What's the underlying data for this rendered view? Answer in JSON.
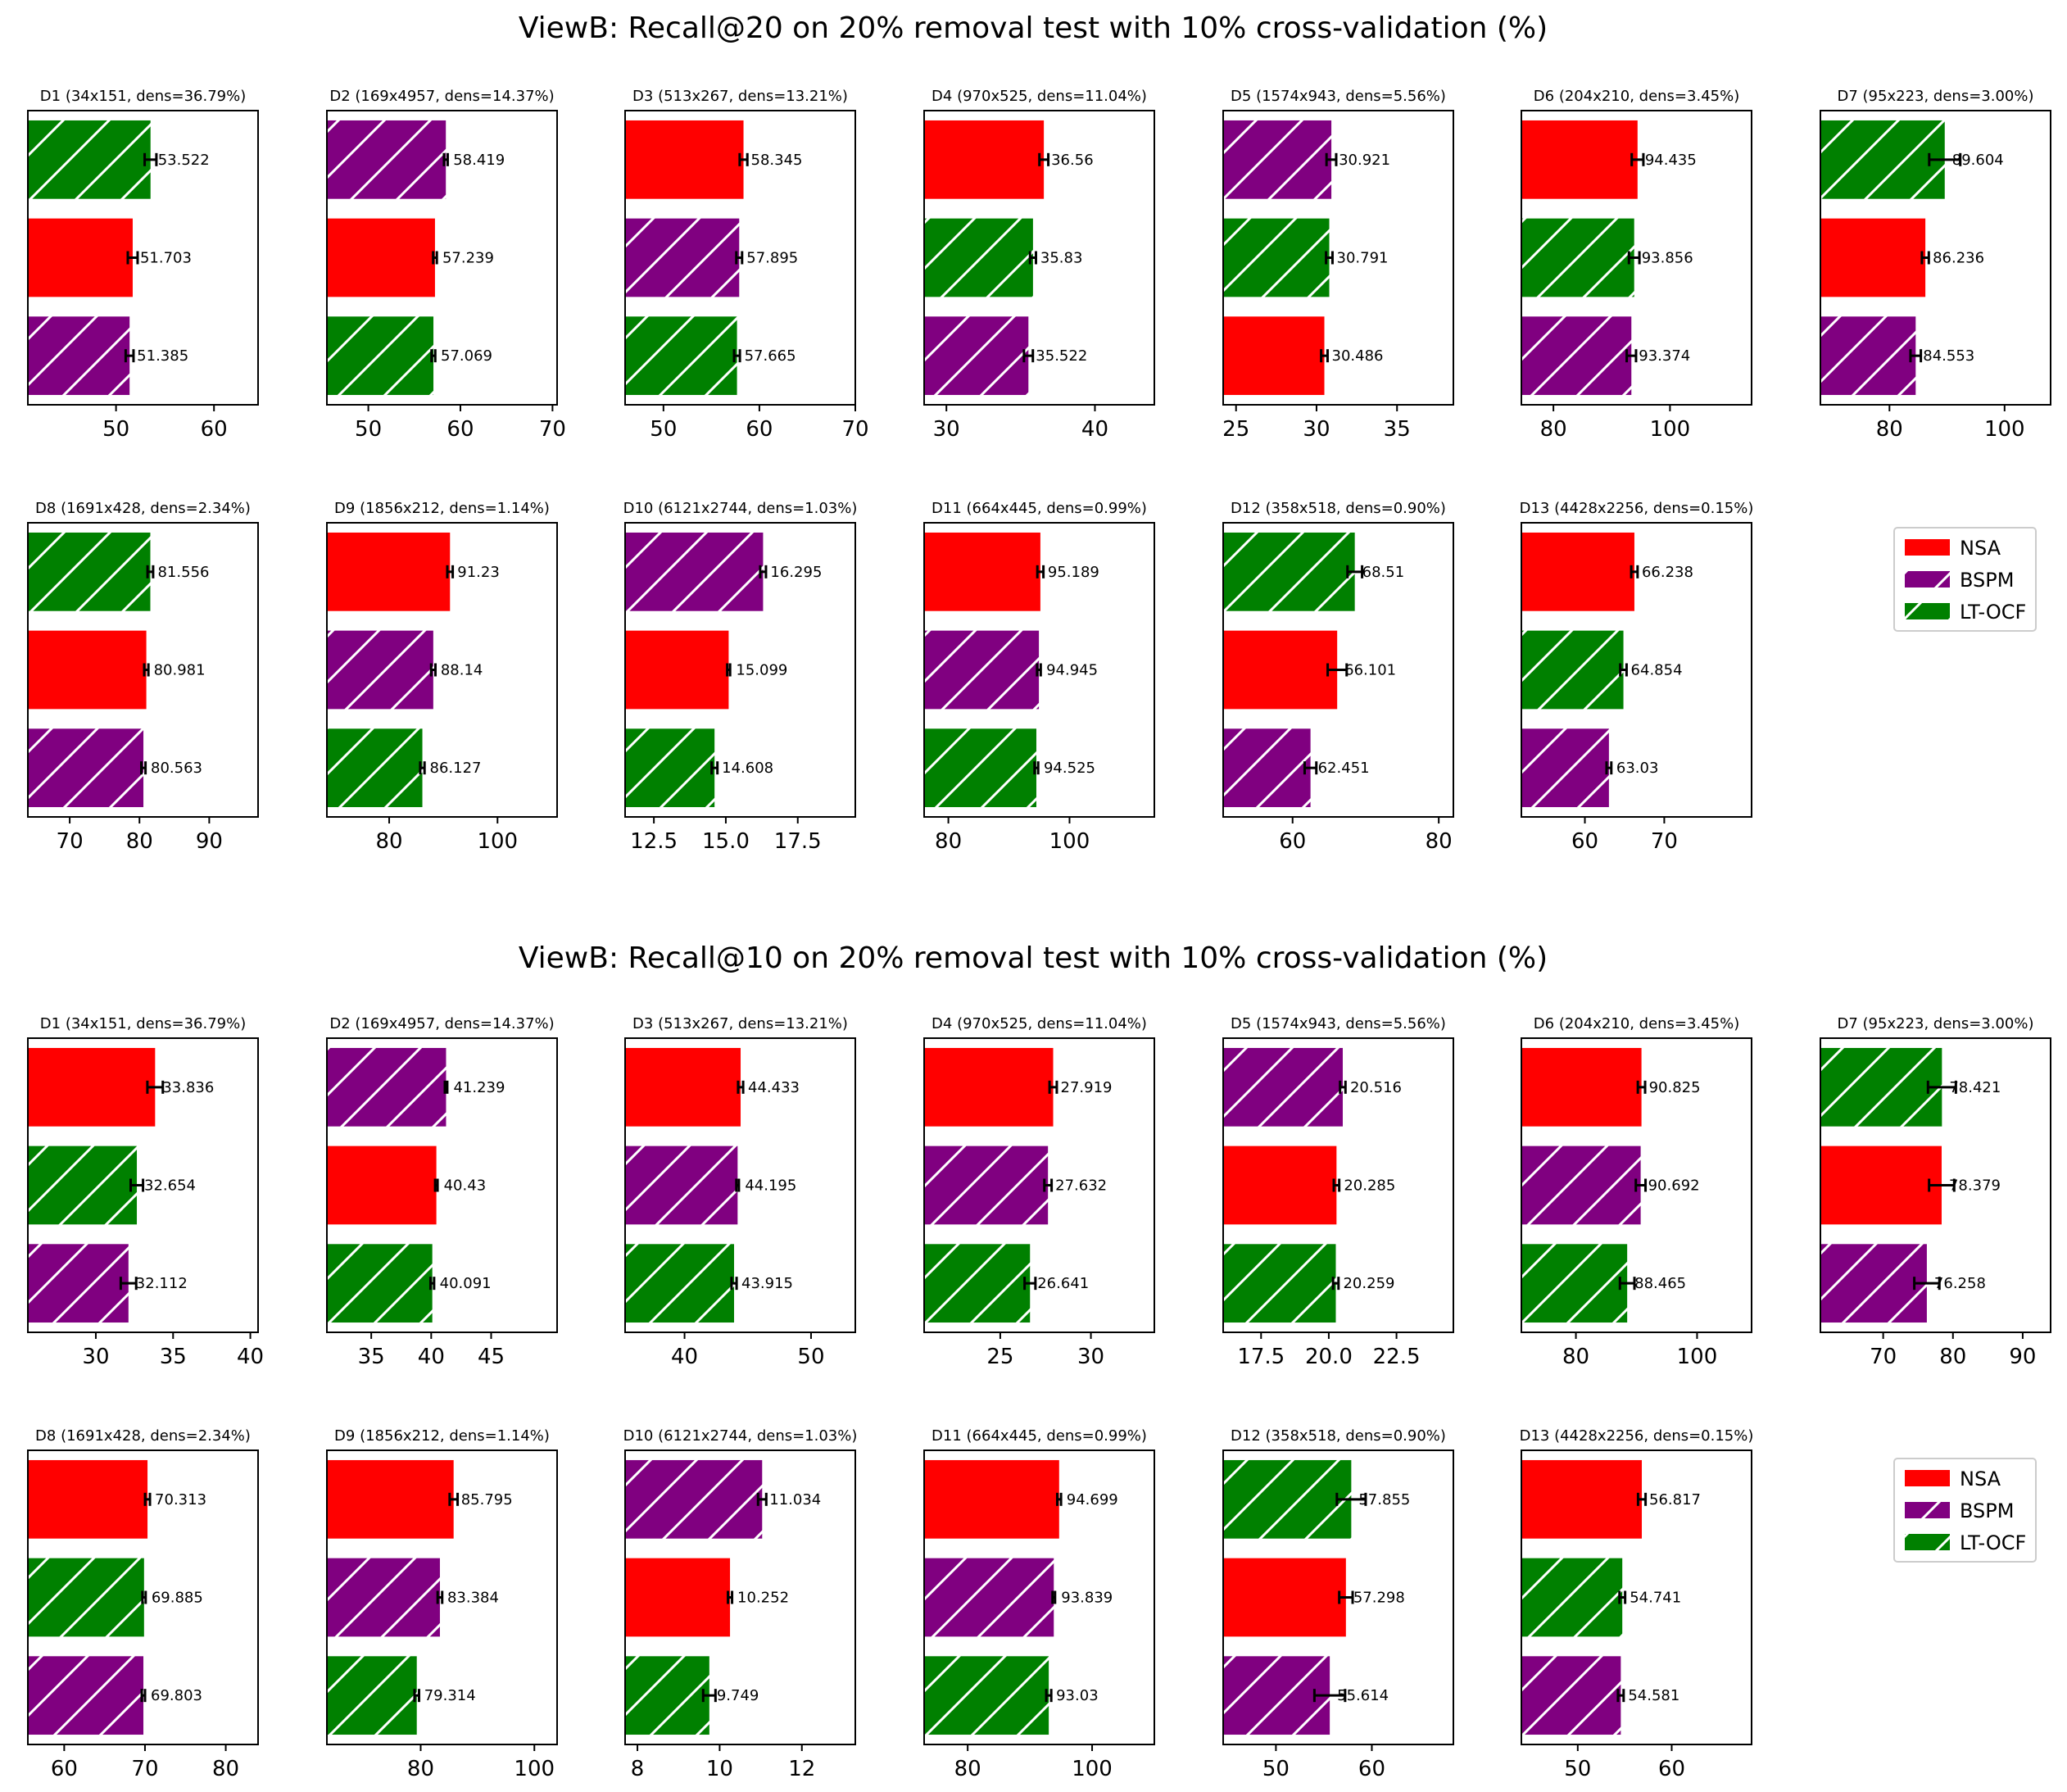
{
  "colors": {
    "NSA": "#ff0000",
    "BSPM": "#800080",
    "LT-OCF": "#008000"
  },
  "legend": [
    "NSA",
    "BSPM",
    "LT-OCF"
  ],
  "chart_data": [
    {
      "type": "bar",
      "title": "ViewB: Recall@20 on 20% removal test with 10% cross-validation (%)",
      "subplots": [
        {
          "title": "D1 (34x151, dens=36.79%)",
          "xlim": [
            41,
            64.5
          ],
          "ticks": [
            50,
            60
          ],
          "bars": [
            {
              "method": "LT-OCF",
              "value": 53.522,
              "err": 0.6
            },
            {
              "method": "NSA",
              "value": 51.703,
              "err": 0.5
            },
            {
              "method": "BSPM",
              "value": 51.385,
              "err": 0.4
            }
          ]
        },
        {
          "title": "D2 (169x4957, dens=14.37%)",
          "xlim": [
            45.5,
            70.5
          ],
          "ticks": [
            50,
            60,
            70
          ],
          "bars": [
            {
              "method": "BSPM",
              "value": 58.419,
              "err": 0.2
            },
            {
              "method": "NSA",
              "value": 57.239,
              "err": 0.2
            },
            {
              "method": "LT-OCF",
              "value": 57.069,
              "err": 0.2
            }
          ]
        },
        {
          "title": "D3 (513x267, dens=13.21%)",
          "xlim": [
            46,
            70
          ],
          "ticks": [
            50,
            60,
            70
          ],
          "bars": [
            {
              "method": "NSA",
              "value": 58.345,
              "err": 0.4
            },
            {
              "method": "BSPM",
              "value": 57.895,
              "err": 0.3
            },
            {
              "method": "LT-OCF",
              "value": 57.665,
              "err": 0.3
            }
          ]
        },
        {
          "title": "D4 (970x525, dens=11.04%)",
          "xlim": [
            28.5,
            44
          ],
          "ticks": [
            30,
            40
          ],
          "bars": [
            {
              "method": "NSA",
              "value": 36.56,
              "err": 0.3
            },
            {
              "method": "LT-OCF",
              "value": 35.83,
              "err": 0.2
            },
            {
              "method": "BSPM",
              "value": 35.522,
              "err": 0.3
            }
          ]
        },
        {
          "title": "D5 (1574x943, dens=5.56%)",
          "xlim": [
            24.2,
            38.5
          ],
          "ticks": [
            25,
            30,
            35
          ],
          "bars": [
            {
              "method": "BSPM",
              "value": 30.921,
              "err": 0.3
            },
            {
              "method": "LT-OCF",
              "value": 30.791,
              "err": 0.2
            },
            {
              "method": "NSA",
              "value": 30.486,
              "err": 0.2
            }
          ]
        },
        {
          "title": "D6 (204x210, dens=3.45%)",
          "xlim": [
            74.5,
            114
          ],
          "ticks": [
            80,
            100
          ],
          "bars": [
            {
              "method": "NSA",
              "value": 94.435,
              "err": 1.0
            },
            {
              "method": "LT-OCF",
              "value": 93.856,
              "err": 0.9
            },
            {
              "method": "BSPM",
              "value": 93.374,
              "err": 0.8
            }
          ]
        },
        {
          "title": "D7 (95x223, dens=3.00%)",
          "xlim": [
            68,
            108
          ],
          "ticks": [
            80,
            100
          ],
          "bars": [
            {
              "method": "LT-OCF",
              "value": 89.604,
              "err": 2.7
            },
            {
              "method": "NSA",
              "value": 86.236,
              "err": 0.6
            },
            {
              "method": "BSPM",
              "value": 84.553,
              "err": 0.9
            }
          ]
        },
        {
          "title": "D8 (1691x428, dens=2.34%)",
          "xlim": [
            64,
            97
          ],
          "ticks": [
            70,
            80,
            90
          ],
          "bars": [
            {
              "method": "LT-OCF",
              "value": 81.556,
              "err": 0.4
            },
            {
              "method": "NSA",
              "value": 80.981,
              "err": 0.3
            },
            {
              "method": "BSPM",
              "value": 80.563,
              "err": 0.3
            }
          ]
        },
        {
          "title": "D9 (1856x212, dens=1.14%)",
          "xlim": [
            68.5,
            111
          ],
          "ticks": [
            80,
            100
          ],
          "bars": [
            {
              "method": "NSA",
              "value": 91.23,
              "err": 0.5
            },
            {
              "method": "BSPM",
              "value": 88.14,
              "err": 0.4
            },
            {
              "method": "LT-OCF",
              "value": 86.127,
              "err": 0.4
            }
          ]
        },
        {
          "title": "D10 (6121x2744, dens=1.03%)",
          "xlim": [
            11.5,
            19.5
          ],
          "ticks": [
            12.5,
            15.0,
            17.5
          ],
          "bars": [
            {
              "method": "BSPM",
              "value": 16.295,
              "err": 0.1
            },
            {
              "method": "NSA",
              "value": 15.099,
              "err": 0.05
            },
            {
              "method": "LT-OCF",
              "value": 14.608,
              "err": 0.1
            }
          ]
        },
        {
          "title": "D11 (664x445, dens=0.99%)",
          "xlim": [
            76,
            114
          ],
          "ticks": [
            80,
            100
          ],
          "bars": [
            {
              "method": "NSA",
              "value": 95.189,
              "err": 0.5
            },
            {
              "method": "BSPM",
              "value": 94.945,
              "err": 0.3
            },
            {
              "method": "LT-OCF",
              "value": 94.525,
              "err": 0.3
            }
          ]
        },
        {
          "title": "D12 (358x518, dens=0.90%)",
          "xlim": [
            50.5,
            82
          ],
          "ticks": [
            60,
            80
          ],
          "bars": [
            {
              "method": "LT-OCF",
              "value": 68.51,
              "err": 1.0
            },
            {
              "method": "NSA",
              "value": 66.101,
              "err": 1.3
            },
            {
              "method": "BSPM",
              "value": 62.451,
              "err": 0.8
            }
          ]
        },
        {
          "title": "D13 (4428x2256, dens=0.15%)",
          "xlim": [
            52,
            81
          ],
          "ticks": [
            60,
            70
          ],
          "bars": [
            {
              "method": "NSA",
              "value": 66.238,
              "err": 0.4
            },
            {
              "method": "LT-OCF",
              "value": 64.854,
              "err": 0.4
            },
            {
              "method": "BSPM",
              "value": 63.03,
              "err": 0.3
            }
          ]
        }
      ]
    },
    {
      "type": "bar",
      "title": "ViewB: Recall@10 on 20% removal test with 10% cross-validation (%)",
      "subplots": [
        {
          "title": "D1 (34x151, dens=36.79%)",
          "xlim": [
            25.6,
            40.5
          ],
          "ticks": [
            30,
            35,
            40
          ],
          "bars": [
            {
              "method": "NSA",
              "value": 33.836,
              "err": 0.5
            },
            {
              "method": "LT-OCF",
              "value": 32.654,
              "err": 0.4
            },
            {
              "method": "BSPM",
              "value": 32.112,
              "err": 0.5
            }
          ]
        },
        {
          "title": "D2 (169x4957, dens=14.37%)",
          "xlim": [
            31.3,
            50.5
          ],
          "ticks": [
            35,
            40,
            45
          ],
          "bars": [
            {
              "method": "BSPM",
              "value": 41.239,
              "err": 0.1
            },
            {
              "method": "NSA",
              "value": 40.43,
              "err": 0.1
            },
            {
              "method": "LT-OCF",
              "value": 40.091,
              "err": 0.15
            }
          ]
        },
        {
          "title": "D3 (513x267, dens=13.21%)",
          "xlim": [
            35.3,
            53.5
          ],
          "ticks": [
            40,
            50
          ],
          "bars": [
            {
              "method": "NSA",
              "value": 44.433,
              "err": 0.2
            },
            {
              "method": "BSPM",
              "value": 44.195,
              "err": 0.1
            },
            {
              "method": "LT-OCF",
              "value": 43.915,
              "err": 0.2
            }
          ]
        },
        {
          "title": "D4 (970x525, dens=11.04%)",
          "xlim": [
            20.8,
            33.5
          ],
          "ticks": [
            25,
            30
          ],
          "bars": [
            {
              "method": "NSA",
              "value": 27.919,
              "err": 0.2
            },
            {
              "method": "BSPM",
              "value": 27.632,
              "err": 0.2
            },
            {
              "method": "LT-OCF",
              "value": 26.641,
              "err": 0.3
            }
          ]
        },
        {
          "title": "D5 (1574x943, dens=5.56%)",
          "xlim": [
            16.1,
            24.6
          ],
          "ticks": [
            17.5,
            20.0,
            22.5
          ],
          "bars": [
            {
              "method": "BSPM",
              "value": 20.516,
              "err": 0.1
            },
            {
              "method": "NSA",
              "value": 20.285,
              "err": 0.1
            },
            {
              "method": "LT-OCF",
              "value": 20.259,
              "err": 0.1
            }
          ]
        },
        {
          "title": "D6 (204x210, dens=3.45%)",
          "xlim": [
            71,
            109
          ],
          "ticks": [
            80,
            100
          ],
          "bars": [
            {
              "method": "NSA",
              "value": 90.825,
              "err": 0.6
            },
            {
              "method": "BSPM",
              "value": 90.692,
              "err": 0.8
            },
            {
              "method": "LT-OCF",
              "value": 88.465,
              "err": 1.2
            }
          ]
        },
        {
          "title": "D7 (95x223, dens=3.00%)",
          "xlim": [
            61,
            94
          ],
          "ticks": [
            70,
            80,
            90
          ],
          "bars": [
            {
              "method": "LT-OCF",
              "value": 78.421,
              "err": 2.0
            },
            {
              "method": "NSA",
              "value": 78.379,
              "err": 1.8
            },
            {
              "method": "BSPM",
              "value": 76.258,
              "err": 1.8
            }
          ]
        },
        {
          "title": "D8 (1691x428, dens=2.34%)",
          "xlim": [
            55.5,
            84
          ],
          "ticks": [
            60,
            70,
            80
          ],
          "bars": [
            {
              "method": "NSA",
              "value": 70.313,
              "err": 0.3
            },
            {
              "method": "LT-OCF",
              "value": 69.885,
              "err": 0.2
            },
            {
              "method": "BSPM",
              "value": 69.803,
              "err": 0.2
            }
          ]
        },
        {
          "title": "D9 (1856x212, dens=1.14%)",
          "xlim": [
            63.5,
            104
          ],
          "ticks": [
            80,
            100
          ],
          "bars": [
            {
              "method": "NSA",
              "value": 85.795,
              "err": 0.7
            },
            {
              "method": "BSPM",
              "value": 83.384,
              "err": 0.4
            },
            {
              "method": "LT-OCF",
              "value": 79.314,
              "err": 0.4
            }
          ]
        },
        {
          "title": "D10 (6121x2744, dens=1.03%)",
          "xlim": [
            7.7,
            13.3
          ],
          "ticks": [
            8,
            10,
            12
          ],
          "bars": [
            {
              "method": "BSPM",
              "value": 11.034,
              "err": 0.1
            },
            {
              "method": "NSA",
              "value": 10.252,
              "err": 0.05
            },
            {
              "method": "LT-OCF",
              "value": 9.749,
              "err": 0.15
            }
          ]
        },
        {
          "title": "D11 (664x445, dens=0.99%)",
          "xlim": [
            73,
            110
          ],
          "ticks": [
            80,
            100
          ],
          "bars": [
            {
              "method": "NSA",
              "value": 94.699,
              "err": 0.3
            },
            {
              "method": "BSPM",
              "value": 93.839,
              "err": 0.2
            },
            {
              "method": "LT-OCF",
              "value": 93.03,
              "err": 0.4
            }
          ]
        },
        {
          "title": "D12 (358x518, dens=0.90%)",
          "xlim": [
            44.5,
            68.5
          ],
          "ticks": [
            50,
            60
          ],
          "bars": [
            {
              "method": "LT-OCF",
              "value": 57.855,
              "err": 1.5
            },
            {
              "method": "NSA",
              "value": 57.298,
              "err": 0.7
            },
            {
              "method": "BSPM",
              "value": 55.614,
              "err": 1.6
            }
          ]
        },
        {
          "title": "D13 (4428x2256, dens=0.15%)",
          "xlim": [
            44,
            68.5
          ],
          "ticks": [
            50,
            60
          ],
          "bars": [
            {
              "method": "NSA",
              "value": 56.817,
              "err": 0.4
            },
            {
              "method": "LT-OCF",
              "value": 54.741,
              "err": 0.3
            },
            {
              "method": "BSPM",
              "value": 54.581,
              "err": 0.3
            }
          ]
        }
      ]
    }
  ]
}
